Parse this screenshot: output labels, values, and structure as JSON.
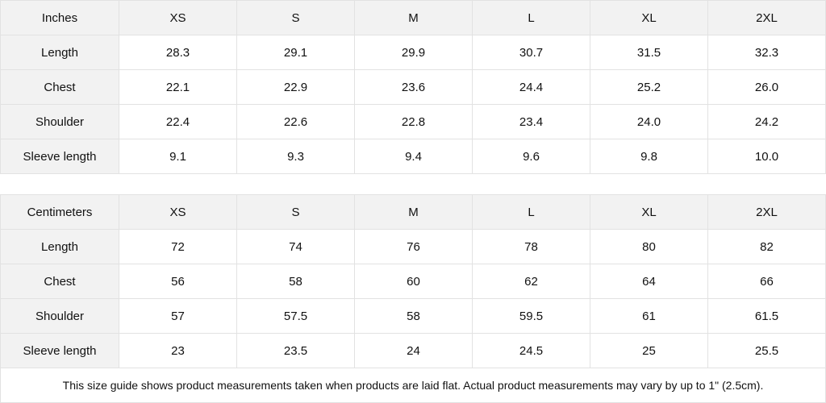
{
  "tables": [
    {
      "unit": "Inches",
      "sizes": [
        "XS",
        "S",
        "M",
        "L",
        "XL",
        "2XL"
      ],
      "rows": [
        {
          "label": "Length",
          "values": [
            "28.3",
            "29.1",
            "29.9",
            "30.7",
            "31.5",
            "32.3"
          ]
        },
        {
          "label": "Chest",
          "values": [
            "22.1",
            "22.9",
            "23.6",
            "24.4",
            "25.2",
            "26.0"
          ]
        },
        {
          "label": "Shoulder",
          "values": [
            "22.4",
            "22.6",
            "22.8",
            "23.4",
            "24.0",
            "24.2"
          ]
        },
        {
          "label": "Sleeve length",
          "values": [
            "9.1",
            "9.3",
            "9.4",
            "9.6",
            "9.8",
            "10.0"
          ]
        }
      ]
    },
    {
      "unit": "Centimeters",
      "sizes": [
        "XS",
        "S",
        "M",
        "L",
        "XL",
        "2XL"
      ],
      "rows": [
        {
          "label": "Length",
          "values": [
            "72",
            "74",
            "76",
            "78",
            "80",
            "82"
          ]
        },
        {
          "label": "Chest",
          "values": [
            "56",
            "58",
            "60",
            "62",
            "64",
            "66"
          ]
        },
        {
          "label": "Shoulder",
          "values": [
            "57",
            "57.5",
            "58",
            "59.5",
            "61",
            "61.5"
          ]
        },
        {
          "label": "Sleeve length",
          "values": [
            "23",
            "23.5",
            "24",
            "24.5",
            "25",
            "25.5"
          ]
        }
      ]
    }
  ],
  "footer_note": "This size guide shows product measurements taken when products are laid flat.  Actual product measurements may vary by up to 1\" (2.5cm).",
  "colors": {
    "header_bg": "#f2f2f2",
    "border": "#e2e2e2"
  }
}
